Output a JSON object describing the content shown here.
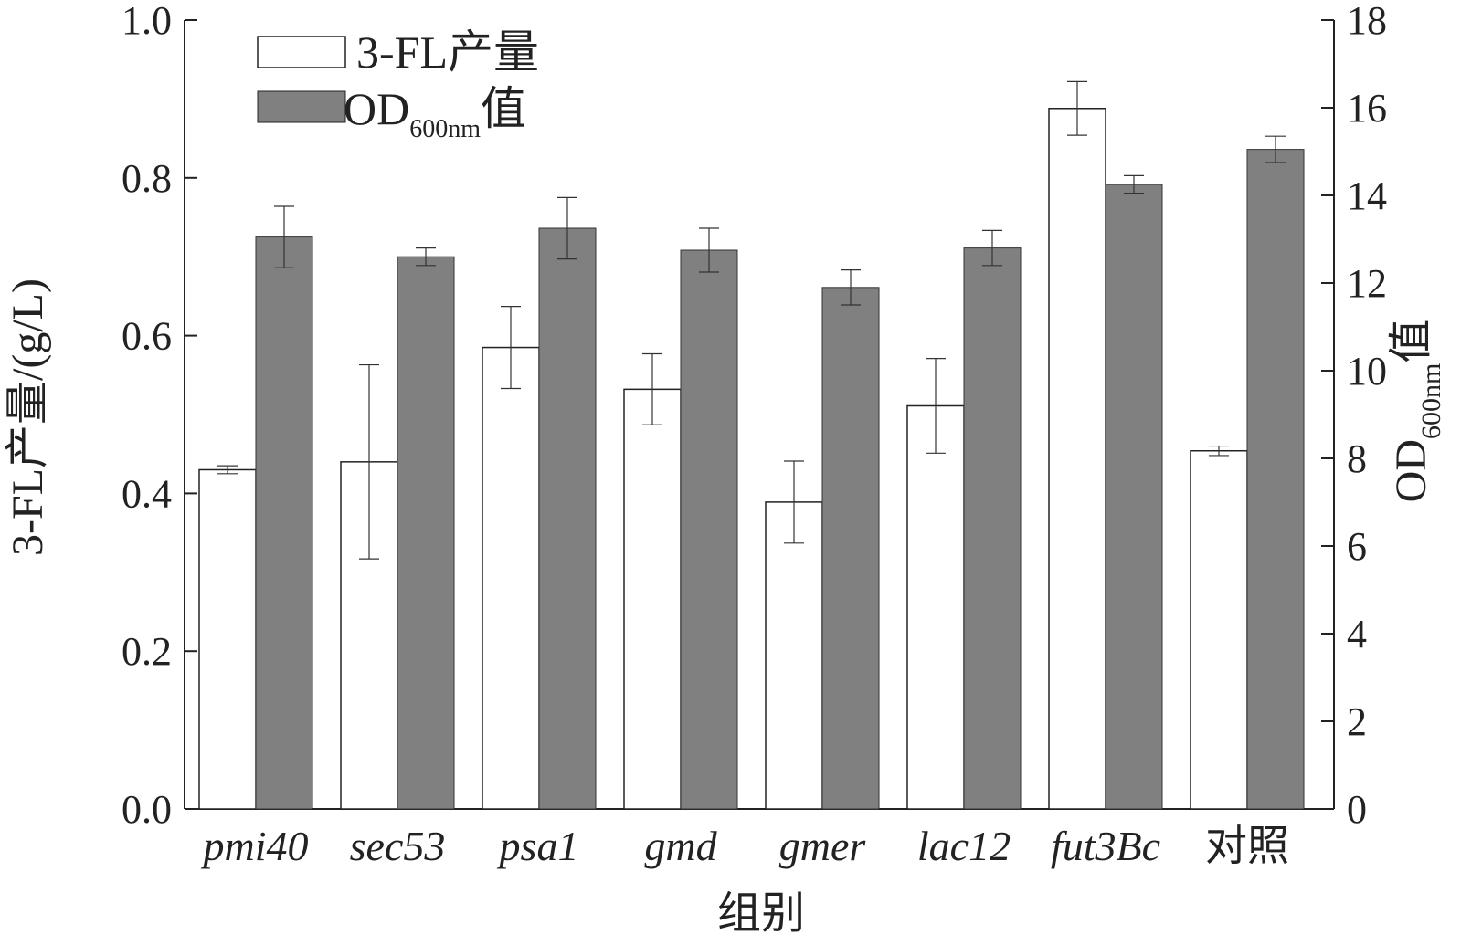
{
  "chart_data": {
    "type": "bar",
    "categories": [
      "pmi40",
      "sec53",
      "psa1",
      "gmd",
      "gmer",
      "lac12",
      "fut3Bc",
      "对照"
    ],
    "categories_italic": [
      true,
      true,
      true,
      true,
      true,
      true,
      true,
      false
    ],
    "xlabel": "组别",
    "ylabel_left": "3-FL产量/(g/L)",
    "ylabel_right_main": "OD",
    "ylabel_right_sub": "600nm",
    "ylabel_right_suffix": "值",
    "ylim_left": [
      0,
      1.0
    ],
    "ylim_right": [
      0,
      18
    ],
    "yticks_left": [
      "0.0",
      "0.2",
      "0.4",
      "0.6",
      "0.8",
      "1.0"
    ],
    "yticks_right": [
      "0",
      "2",
      "4",
      "6",
      "8",
      "10",
      "12",
      "14",
      "16",
      "18"
    ],
    "legend_position": "top-left",
    "series": [
      {
        "name": "3-FL产量",
        "name_main": "3-FL产量",
        "name_sub": "",
        "name_suffix": "",
        "axis": "left",
        "color": "#ffffff",
        "values": [
          0.43,
          0.44,
          0.585,
          0.532,
          0.389,
          0.511,
          0.888,
          0.454
        ],
        "errors": [
          0.005,
          0.123,
          0.052,
          0.045,
          0.052,
          0.06,
          0.034,
          0.006
        ]
      },
      {
        "name": "OD600nm值",
        "name_main": "OD",
        "name_sub": "600nm",
        "name_suffix": "值",
        "axis": "right",
        "color": "#808080",
        "values": [
          13.05,
          12.6,
          13.25,
          12.75,
          11.9,
          12.8,
          14.25,
          15.05
        ],
        "errors": [
          0.7,
          0.2,
          0.7,
          0.5,
          0.4,
          0.4,
          0.2,
          0.3
        ]
      }
    ]
  }
}
